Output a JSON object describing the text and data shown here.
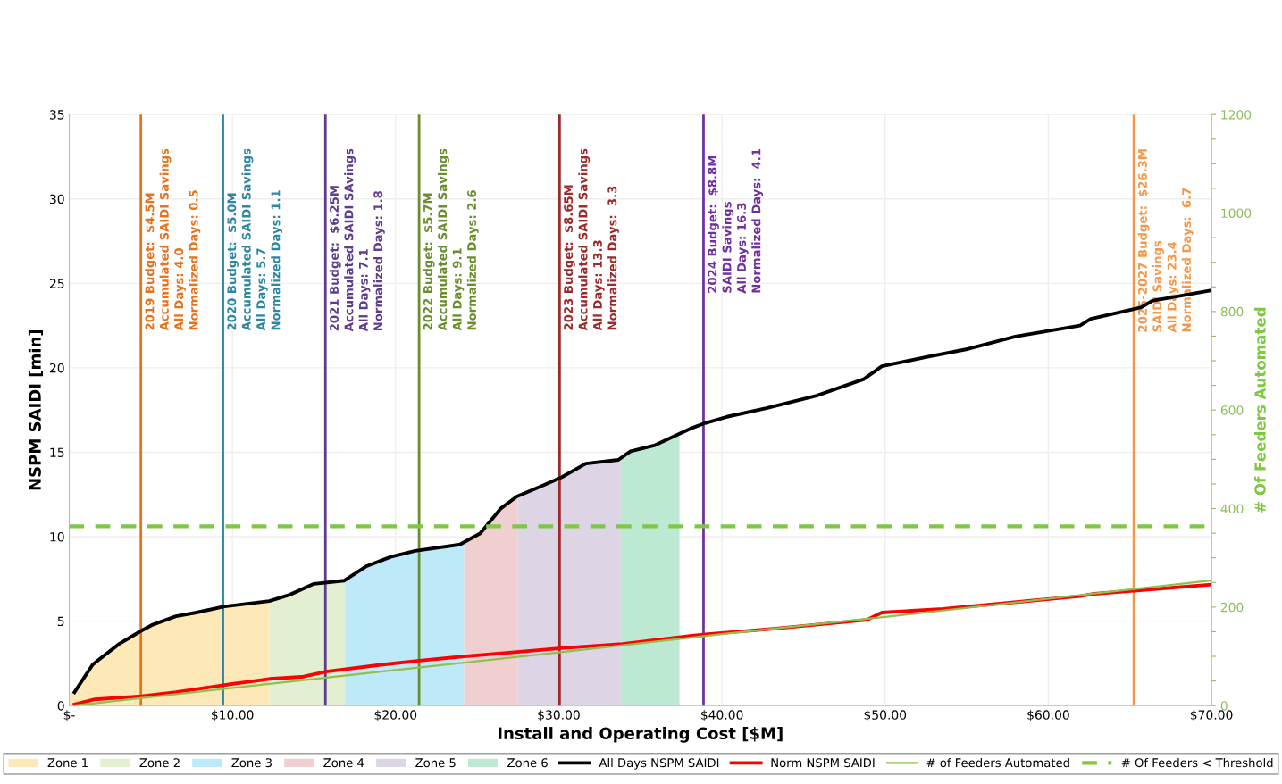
{
  "chart_data": {
    "type": "line",
    "xlabel": "Install and Operating Cost [$M]",
    "ylabel": "NSPM SAIDI [min]",
    "y2label": "# Of Feeders Automated",
    "xlim": [
      0,
      70
    ],
    "xticks": [
      {
        "value": 0,
        "label": "$-"
      },
      {
        "value": 10,
        "label": "$10.00"
      },
      {
        "value": 20,
        "label": "$20.00"
      },
      {
        "value": 30,
        "label": "$30.00"
      },
      {
        "value": 40,
        "label": "$40.00"
      },
      {
        "value": 50,
        "label": "$50.00"
      },
      {
        "value": 60,
        "label": "$60.00"
      },
      {
        "value": 70,
        "label": "$70.00"
      }
    ],
    "ylim": [
      0,
      35
    ],
    "yticks": [
      0,
      5,
      10,
      15,
      20,
      25,
      30,
      35
    ],
    "y2lim": [
      0,
      1200
    ],
    "y2ticks": [
      0,
      {
        "value": 50,
        "label": null
      },
      {
        "value": 100,
        "label": null
      },
      {
        "value": 150,
        "label": null
      },
      200,
      {
        "value": 250,
        "label": null
      },
      {
        "value": 300,
        "label": null
      },
      {
        "value": 350,
        "label": null
      },
      400,
      {
        "value": 450,
        "label": null
      },
      {
        "value": 500,
        "label": null
      },
      {
        "value": 550,
        "label": null
      },
      600,
      {
        "value": 650,
        "label": null
      },
      {
        "value": 700,
        "label": null
      },
      {
        "value": 750,
        "label": null
      },
      800,
      {
        "value": 850,
        "label": null
      },
      {
        "value": 900,
        "label": null
      },
      {
        "value": 950,
        "label": null
      },
      1000,
      {
        "value": 1050,
        "label": null
      },
      {
        "value": 1100,
        "label": null
      },
      {
        "value": 1150,
        "label": null
      },
      1200
    ],
    "grid": true,
    "legend": "bottom",
    "marker": "none",
    "series": [
      {
        "name": "Zone 1",
        "type": "area",
        "color": "#fde9b8",
        "x": [
          0,
          0.32,
          1.44,
          2.06,
          3.06,
          4.43,
          5.04,
          6.54,
          7.79,
          9.53,
          12.26
        ],
        "values": [
          0.74,
          0.79,
          2.43,
          2.91,
          3.65,
          4.44,
          4.76,
          5.29,
          5.51,
          5.87,
          6.19
        ]
      },
      {
        "name": "Zone 2",
        "type": "area",
        "color": "#e2efd0",
        "x": [
          12.26,
          13.5,
          15.0,
          16.9
        ],
        "values": [
          6.19,
          6.56,
          7.21,
          7.4
        ]
      },
      {
        "name": "Zone 3",
        "type": "area",
        "color": "#bde9f8",
        "x": [
          16.9,
          18.23,
          19.7,
          21.2,
          24.2
        ],
        "values": [
          7.4,
          8.26,
          8.81,
          9.16,
          9.6
        ]
      },
      {
        "name": "Zone 4",
        "type": "area",
        "color": "#efcfcf",
        "x": [
          24.2,
          25.19,
          26.43,
          27.5
        ],
        "values": [
          9.6,
          10.2,
          11.66,
          12.4
        ]
      },
      {
        "name": "Zone 5",
        "type": "area",
        "color": "#ddd5e6",
        "x": [
          27.5,
          28.92,
          30.17,
          31.66,
          33.8
        ],
        "values": [
          12.4,
          12.99,
          13.52,
          14.33,
          14.56
        ]
      },
      {
        "name": "Zone 6",
        "type": "area",
        "color": "#bde8d2",
        "x": [
          33.8,
          34.4,
          35.9,
          37.4
        ],
        "values": [
          14.56,
          15.06,
          15.42,
          16.1
        ]
      },
      {
        "name": "All Days NSPM SAIDI",
        "color": "#000000",
        "x": [
          0.32,
          1.44,
          2.06,
          3.06,
          4.43,
          5.04,
          6.54,
          7.79,
          9.53,
          12.26,
          13.5,
          15.0,
          16.86,
          18.23,
          19.7,
          21.2,
          23.94,
          25.19,
          26.43,
          27.43,
          28.92,
          30.17,
          31.66,
          33.65,
          34.4,
          35.9,
          38.05,
          38.97,
          40.3,
          42.72,
          45.8,
          48.69,
          49.8,
          52.45,
          55.1,
          57.98,
          61.94,
          62.6,
          65.7,
          66.37,
          69.9
        ],
        "values": [
          0.79,
          2.43,
          2.91,
          3.65,
          4.44,
          4.76,
          5.29,
          5.51,
          5.87,
          6.19,
          6.56,
          7.21,
          7.4,
          8.26,
          8.81,
          9.16,
          9.54,
          10.2,
          11.66,
          12.38,
          12.99,
          13.52,
          14.33,
          14.55,
          15.06,
          15.42,
          16.39,
          16.73,
          17.1,
          17.61,
          18.35,
          19.33,
          20.09,
          20.62,
          21.12,
          21.85,
          22.5,
          22.9,
          23.58,
          23.97,
          24.57
        ]
      },
      {
        "name": "Norm NSPM SAIDI",
        "color": "#ff0000",
        "x": [
          0.32,
          1.57,
          4.43,
          6.54,
          9.53,
          12.26,
          14.25,
          15.74,
          19.22,
          21.46,
          24.2,
          30.17,
          33.9,
          38.05,
          38.97,
          43.17,
          48.9,
          49.8,
          53.55,
          59.06,
          61.94,
          62.83,
          69.9
        ],
        "values": [
          0.07,
          0.37,
          0.56,
          0.8,
          1.22,
          1.58,
          1.7,
          2.01,
          2.43,
          2.66,
          2.91,
          3.4,
          3.65,
          4.12,
          4.22,
          4.55,
          5.08,
          5.51,
          5.73,
          6.22,
          6.48,
          6.62,
          7.16
        ]
      },
      {
        "name": "# of Feeders Automated",
        "axis": "y2",
        "color": "#92c050",
        "x": [
          0.3,
          10,
          20,
          30,
          40,
          50,
          60,
          70
        ],
        "values": [
          0,
          36,
          72,
          108,
          145,
          180,
          217,
          254
        ]
      },
      {
        "name": "# Of Feeders < Threshold",
        "axis": "y2",
        "color": "#7ec843",
        "line_style": "dashed",
        "x": [
          0,
          70
        ],
        "values": [
          364,
          364
        ]
      }
    ],
    "ref_lines": [
      {
        "axis": "x",
        "value": 4.39,
        "color": "#e8711b"
      },
      {
        "axis": "x",
        "value": 9.42,
        "color": "#2e86a3"
      },
      {
        "axis": "x",
        "value": 15.7,
        "color": "#5e3c8e"
      },
      {
        "axis": "x",
        "value": 21.44,
        "color": "#6a8e2c"
      },
      {
        "axis": "x",
        "value": 30.05,
        "color": "#9b2a2a"
      },
      {
        "axis": "x",
        "value": 38.87,
        "color": "#7030a0"
      },
      {
        "axis": "x",
        "value": 65.24,
        "color": "#f79646"
      }
    ],
    "annotations": [
      {
        "text": "2019 Budget:  $4.5M\nAccumulated SAIDI Savings\nAll Days: 4.0\nNormalized Days: 0.5",
        "x": 4.39,
        "y": 33
      },
      {
        "text": "2020 Budget:  $5.0M\nAccumulated SAIDI Savings\nAll Days: 5.7\nNormalized Days: 1.1",
        "x": 9.42,
        "y": 33
      },
      {
        "text": "2021 Budget:  $6.25M\nAccumulated SAIDI SAvings\nAll Days: 7.1\nNormalized Days: 1.8",
        "x": 15.7,
        "y": 33
      },
      {
        "text": "2022 Budget:  $5.7M\nAccumulated SAIDI Savings\nAll Days: 9.1\nNormalized Days: 2.6",
        "x": 21.44,
        "y": 33
      },
      {
        "text": "2023 Budget:  $8.65M\nAccumulated SAIDI Savings\nAll Days: 13.3\nNormalized Days:  3.3",
        "x": 30.05,
        "y": 33
      },
      {
        "text": "2024 Budget:  $8.8M\nSAIDI Savings\nAll Days: 16.3\nNormalized Days:  4.1",
        "x": 38.87,
        "y": 33
      },
      {
        "text": "2025-2027 Budget:  $26.3M\nSAIDI Savings\nAll Days: 23.4\nNormalized Days:  6.7",
        "x": 65.24,
        "y": 33
      }
    ]
  }
}
